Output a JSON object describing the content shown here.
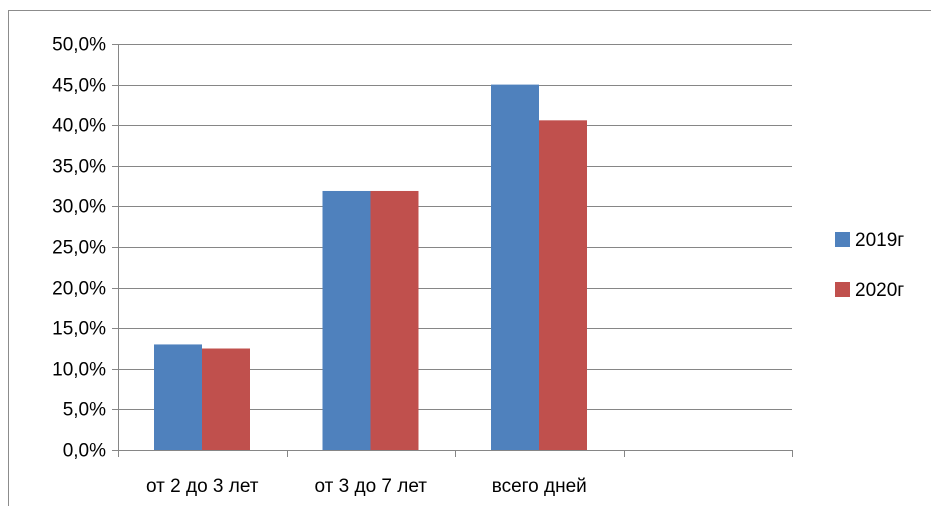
{
  "chart_data": {
    "type": "bar",
    "title": "",
    "xlabel": "",
    "ylabel": "",
    "categories": [
      "от 2 до 3 лет",
      "от 3 до 7 лет",
      "всего дней",
      ""
    ],
    "series": [
      {
        "name": "2019г",
        "color": "#4f81bd",
        "values": [
          13.0,
          31.9,
          45.0,
          null
        ]
      },
      {
        "name": "2020г",
        "color": "#c0504d",
        "values": [
          12.5,
          31.9,
          40.6,
          null
        ]
      }
    ],
    "ylim": [
      0,
      50
    ],
    "yticks": [
      0,
      5,
      10,
      15,
      20,
      25,
      30,
      35,
      40,
      45,
      50
    ],
    "ytick_labels": [
      "0,0%",
      "5,0%",
      "10,0%",
      "15,0%",
      "20,0%",
      "25,0%",
      "30,0%",
      "35,0%",
      "40,0%",
      "45,0%",
      "50,0%"
    ],
    "grid": true,
    "gridline_color": "#868686",
    "legend_position": "right"
  }
}
